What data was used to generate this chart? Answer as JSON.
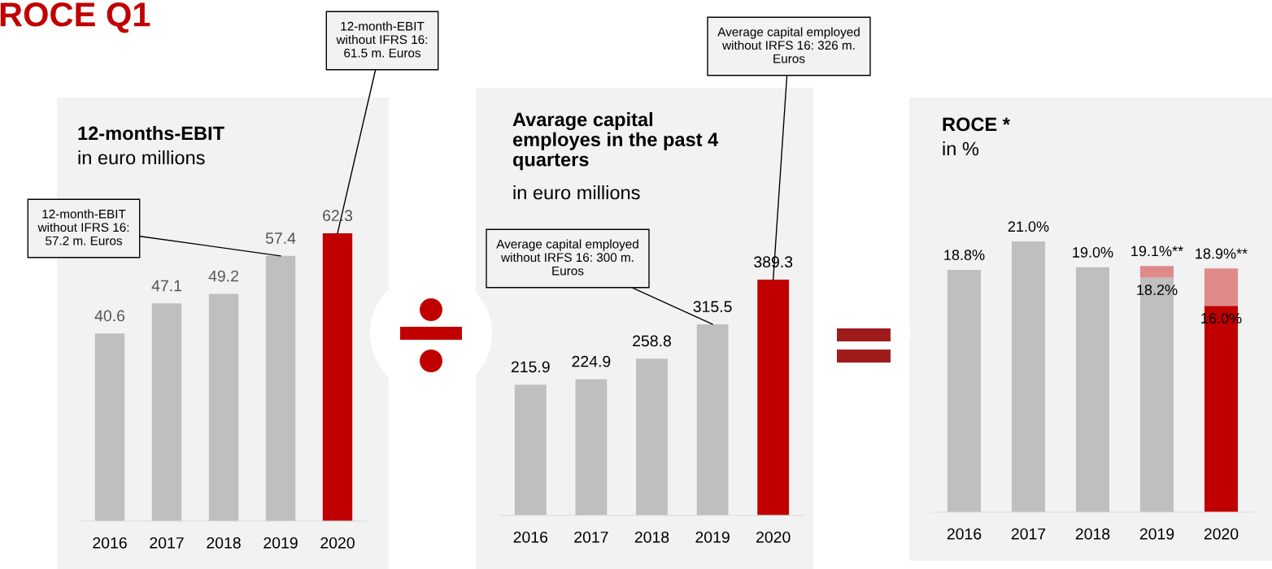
{
  "chart_data": [
    {
      "type": "bar",
      "title": "12-months-EBIT",
      "subtitle": "in euro millions",
      "categories": [
        "2016",
        "2017",
        "2018",
        "2019",
        "2020"
      ],
      "series": [
        {
          "values": [
            40.6,
            47.1,
            49.2,
            57.4,
            62.3
          ],
          "colors": [
            "#bfbfbf",
            "#bfbfbf",
            "#bfbfbf",
            "#bfbfbf",
            "#c00000"
          ]
        }
      ],
      "data_labels": true,
      "annotations": [
        "ROCE Q1",
        {
          "text": "12-month-EBIT\nwithout IFRS 16:\n57.2 m. Euros",
          "x": "2019",
          "y": 57.4
        },
        {
          "text": "12-month-EBIT\nwithout IFRS 16:\n61.5 m. Euros",
          "x": "2020",
          "y": 62.3
        }
      ]
    },
    {
      "type": "bar",
      "title": "Avarage capital\nemployes in the past 4\nquarters",
      "subtitle": "in euro millions",
      "categories": [
        "2016",
        "2017",
        "2018",
        "2019",
        "2020"
      ],
      "series": [
        {
          "values": [
            215.9,
            224.9,
            258.8,
            315.5,
            389.3
          ],
          "colors": [
            "#bfbfbf",
            "#bfbfbf",
            "#bfbfbf",
            "#bfbfbf",
            "#c00000"
          ]
        }
      ],
      "data_labels": true,
      "annotations": [
        {
          "text": "Average capital employed\nwithout IRFS 16: 300 m.\nEuros",
          "x": "2019",
          "y": 315.5
        },
        {
          "text": "Average capital employed\nwithout IRFS 16: 326 m.\nEuros",
          "x": "2020",
          "y": 389.3
        }
      ]
    },
    {
      "type": "bar",
      "title": "ROCE *",
      "subtitle": "in %",
      "categories": [
        "2016",
        "2017",
        "2018",
        "2019",
        "2020"
      ],
      "stacked": true,
      "series": [
        {
          "values": [
            18.8,
            21.0,
            19.0,
            18.2,
            16.0
          ],
          "colors": [
            "#bfbfbf",
            "#bfbfbf",
            "#bfbfbf",
            "#bfbfbf",
            "#c00000"
          ],
          "value_labels": [
            null,
            null,
            null,
            "18.2%",
            "16.0%"
          ]
        },
        {
          "values": [
            null,
            null,
            null,
            0.9,
            2.9
          ],
          "colors": [
            "#df8a8a",
            "#df8a8a",
            "#df8a8a",
            "#df8a8a",
            "#df8a8a"
          ]
        }
      ],
      "totals": [
        "18.8%",
        "21.0%",
        "19.0%",
        "19.1%**",
        "18.9%**"
      ]
    }
  ]
}
